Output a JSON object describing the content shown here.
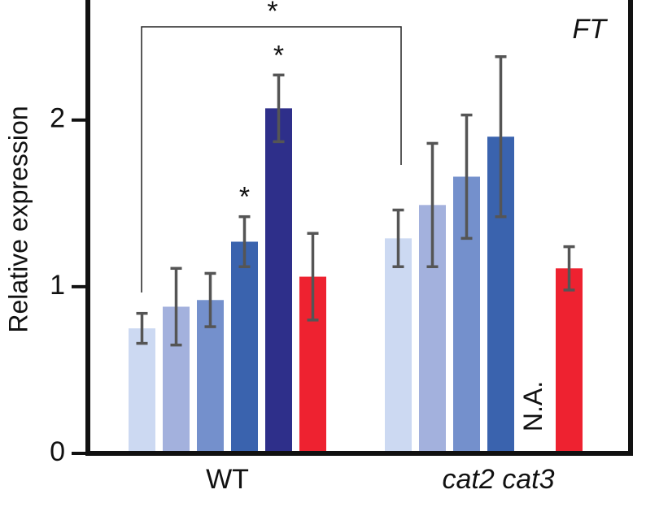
{
  "chart_data": {
    "type": "bar",
    "y_label": "Relative expression",
    "gene_label": "FT",
    "categories": [
      "WT",
      "cat2 cat3"
    ],
    "series": [
      {
        "color": "#ccd9f2",
        "values": [
          0.75,
          1.29
        ],
        "errors": [
          0.09,
          0.17
        ]
      },
      {
        "color": "#a3b1dd",
        "values": [
          0.88,
          1.49
        ],
        "errors": [
          0.23,
          0.37
        ]
      },
      {
        "color": "#7490cc",
        "values": [
          0.92,
          1.66
        ],
        "errors": [
          0.16,
          0.37
        ]
      },
      {
        "color": "#3a63ae",
        "values": [
          1.27,
          1.9
        ],
        "errors": [
          0.15,
          0.48
        ]
      },
      {
        "color": "#2e2f8a",
        "values": [
          2.07,
          null
        ],
        "errors": [
          0.2,
          null
        ]
      },
      {
        "color": "#ee2230",
        "values": [
          1.06,
          1.11
        ],
        "errors": [
          0.26,
          0.13
        ]
      }
    ],
    "annotations": [
      "*",
      "*",
      "*",
      "N.A."
    ],
    "ylim": [
      0,
      2.72
    ],
    "yticks": [
      0,
      1,
      2
    ],
    "error_color": "#555555"
  }
}
